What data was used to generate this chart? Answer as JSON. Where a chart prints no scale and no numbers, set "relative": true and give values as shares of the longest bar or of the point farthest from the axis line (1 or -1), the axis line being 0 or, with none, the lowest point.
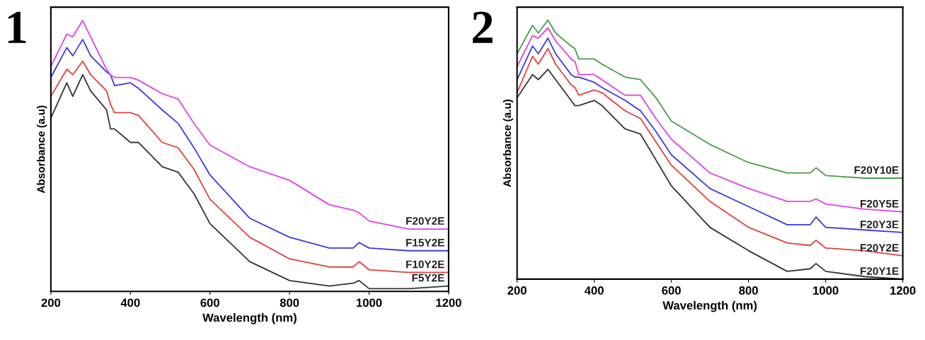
{
  "chart_data": [
    {
      "type": "line",
      "relative": true,
      "annotations": [
        "1"
      ],
      "xlabel": "Wavelength (nm)",
      "ylabel": "Absorbance (a.u)",
      "xlim": [
        200,
        1200
      ],
      "xticks": [
        200,
        400,
        600,
        800,
        1000,
        1200
      ],
      "x": [
        200,
        240,
        255,
        280,
        300,
        340,
        350,
        360,
        400,
        420,
        480,
        520,
        560,
        600,
        700,
        800,
        900,
        960,
        975,
        1000,
        1100,
        1200
      ],
      "legend": false,
      "grid": false,
      "marker": "none",
      "line_style": "solid",
      "series": [
        {
          "name": "F5Y2E",
          "color": "#333333",
          "values": [
            0.64,
            0.77,
            0.72,
            0.8,
            0.74,
            0.67,
            0.6,
            0.6,
            0.55,
            0.55,
            0.46,
            0.44,
            0.36,
            0.25,
            0.11,
            0.04,
            0.02,
            0.03,
            0.04,
            0.01,
            0.01,
            0.02
          ]
        },
        {
          "name": "F10Y2E",
          "color": "#e0413f",
          "values": [
            0.72,
            0.82,
            0.8,
            0.85,
            0.8,
            0.74,
            0.69,
            0.66,
            0.66,
            0.65,
            0.55,
            0.53,
            0.45,
            0.34,
            0.2,
            0.12,
            0.09,
            0.09,
            0.11,
            0.08,
            0.07,
            0.07
          ]
        },
        {
          "name": "F15Y2E",
          "color": "#3a3adf",
          "values": [
            0.79,
            0.9,
            0.87,
            0.93,
            0.87,
            0.81,
            0.8,
            0.76,
            0.77,
            0.75,
            0.67,
            0.62,
            0.53,
            0.43,
            0.27,
            0.2,
            0.16,
            0.16,
            0.18,
            0.16,
            0.15,
            0.15
          ]
        },
        {
          "name": "F20Y2E",
          "color": "#e040e8",
          "values": [
            0.83,
            0.95,
            0.94,
            1.0,
            0.94,
            0.82,
            0.8,
            0.79,
            0.79,
            0.78,
            0.73,
            0.71,
            0.62,
            0.54,
            0.46,
            0.41,
            0.32,
            0.3,
            0.29,
            0.26,
            0.23,
            0.23
          ]
        }
      ]
    },
    {
      "type": "line",
      "relative": true,
      "annotations": [
        "2"
      ],
      "xlabel": "Wavelength (nm)",
      "ylabel": "Absorbance (a.u)",
      "xlim": [
        200,
        1200
      ],
      "xticks": [
        200,
        400,
        600,
        800,
        1000,
        1200
      ],
      "x": [
        200,
        240,
        255,
        280,
        300,
        340,
        350,
        360,
        400,
        420,
        480,
        520,
        560,
        600,
        700,
        800,
        900,
        960,
        975,
        1000,
        1100,
        1200
      ],
      "legend": false,
      "grid": false,
      "marker": "none",
      "line_style": "solid",
      "series": [
        {
          "name": "F20Y1E",
          "color": "#333333",
          "values": [
            0.7,
            0.79,
            0.77,
            0.81,
            0.77,
            0.69,
            0.67,
            0.67,
            0.69,
            0.67,
            0.58,
            0.56,
            0.46,
            0.36,
            0.2,
            0.11,
            0.03,
            0.04,
            0.06,
            0.03,
            0.01,
            0.0
          ]
        },
        {
          "name": "F20Y2E",
          "color": "#e0413f",
          "values": [
            0.72,
            0.86,
            0.83,
            0.89,
            0.83,
            0.75,
            0.74,
            0.71,
            0.73,
            0.72,
            0.65,
            0.62,
            0.53,
            0.44,
            0.3,
            0.2,
            0.14,
            0.13,
            0.15,
            0.12,
            0.11,
            0.09
          ]
        },
        {
          "name": "F20Y3E",
          "color": "#3a3adf",
          "values": [
            0.77,
            0.9,
            0.87,
            0.93,
            0.87,
            0.79,
            0.78,
            0.78,
            0.76,
            0.74,
            0.69,
            0.65,
            0.57,
            0.48,
            0.35,
            0.28,
            0.21,
            0.21,
            0.24,
            0.2,
            0.19,
            0.18
          ]
        },
        {
          "name": "F20Y5E",
          "color": "#e040e8",
          "values": [
            0.82,
            0.94,
            0.93,
            0.97,
            0.92,
            0.85,
            0.84,
            0.79,
            0.79,
            0.77,
            0.71,
            0.71,
            0.62,
            0.54,
            0.41,
            0.35,
            0.3,
            0.3,
            0.31,
            0.29,
            0.27,
            0.26
          ]
        },
        {
          "name": "F20Y10E",
          "color": "#4a9a4a",
          "values": [
            0.87,
            0.98,
            0.95,
            1.0,
            0.95,
            0.9,
            0.89,
            0.85,
            0.85,
            0.83,
            0.78,
            0.77,
            0.7,
            0.61,
            0.52,
            0.45,
            0.41,
            0.41,
            0.43,
            0.4,
            0.39,
            0.39
          ]
        }
      ]
    }
  ]
}
